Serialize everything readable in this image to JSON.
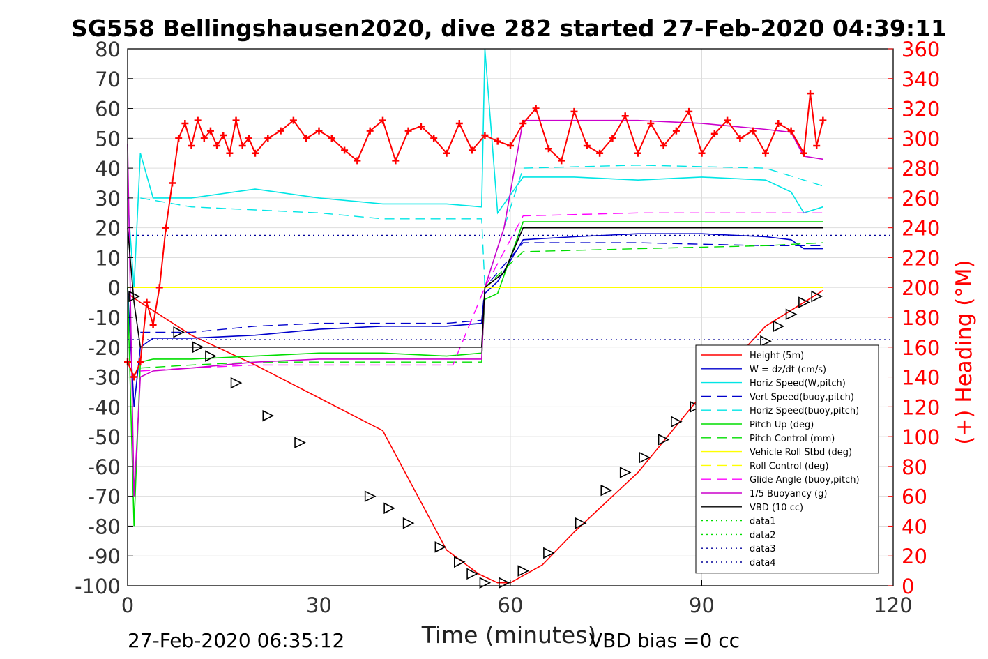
{
  "chart_data": {
    "type": "line",
    "title": "SG558 Bellingshausen2020, dive 282 started 27-Feb-2020 04:39:11",
    "xlabel": "Time (minutes)",
    "ylabel_right": "(+) Heading (°M)",
    "footer_left": "27-Feb-2020 06:35:12",
    "footer_right": "VBD bias =0 cc",
    "xlim": [
      0,
      120
    ],
    "ylim": [
      -100,
      80
    ],
    "y2lim": [
      0,
      360
    ],
    "x_ticks": [
      0,
      30,
      60,
      90,
      120
    ],
    "y_ticks": [
      80,
      70,
      60,
      50,
      40,
      30,
      20,
      10,
      0,
      -10,
      -20,
      -30,
      -40,
      -50,
      -60,
      -70,
      -80,
      -90,
      -100
    ],
    "y2_ticks": [
      360,
      340,
      320,
      300,
      280,
      260,
      240,
      220,
      200,
      180,
      160,
      140,
      120,
      100,
      80,
      60,
      40,
      20,
      0
    ],
    "grid": true,
    "legend_position": "lower-right",
    "series": [
      {
        "name": "Height (5m)",
        "color": "#ff0000",
        "style": "solid",
        "x": [
          0,
          2,
          10,
          20,
          30,
          40,
          50,
          55,
          58,
          60,
          65,
          70,
          80,
          90,
          100,
          109
        ],
        "values": [
          -2,
          -5,
          -16,
          -26,
          -37,
          -48,
          -88,
          -96,
          -99,
          -99,
          -93,
          -82,
          -62,
          -36,
          -13,
          -1
        ]
      },
      {
        "name": "W = dz/dt (cm/s)",
        "color": "#0000cc",
        "style": "solid",
        "x": [
          0,
          1,
          2,
          4,
          10,
          20,
          30,
          40,
          50,
          55.5,
          56,
          58,
          62,
          70,
          80,
          90,
          100,
          104,
          106,
          109
        ],
        "values": [
          0,
          -40,
          -20,
          -17,
          -17,
          -16,
          -14,
          -13,
          -13,
          -12,
          -2,
          2,
          16,
          17,
          18,
          18,
          17,
          16,
          13,
          13
        ]
      },
      {
        "name": "Horiz Speed(W,pitch)",
        "color": "#00e5e5",
        "style": "solid",
        "x": [
          0,
          1,
          2,
          4,
          10,
          20,
          30,
          40,
          50,
          55.5,
          56,
          58,
          62,
          70,
          80,
          90,
          100,
          104,
          106,
          109
        ],
        "values": [
          30,
          0,
          45,
          30,
          30,
          33,
          30,
          28,
          28,
          27,
          80,
          25,
          37,
          37,
          36,
          37,
          36,
          32,
          25,
          27
        ]
      },
      {
        "name": "Vert Speed(buoy,pitch)",
        "color": "#0000cc",
        "style": "dashed",
        "x": [
          2,
          10,
          20,
          30,
          40,
          50,
          55.5,
          56,
          62,
          80,
          100,
          109
        ],
        "values": [
          -15,
          -15,
          -13,
          -12,
          -12,
          -12,
          -11,
          0,
          15,
          15,
          14,
          14
        ]
      },
      {
        "name": "Horiz Speed(buoy,pitch)",
        "color": "#00e5e5",
        "style": "dashed",
        "x": [
          2,
          10,
          20,
          30,
          40,
          50,
          55.5,
          56,
          62,
          80,
          100,
          109
        ],
        "values": [
          30,
          27,
          26,
          25,
          23,
          23,
          23,
          0,
          40,
          41,
          40,
          34
        ]
      },
      {
        "name": "Pitch Up (deg)",
        "color": "#00dd00",
        "style": "solid",
        "x": [
          0,
          1,
          2,
          4,
          10,
          20,
          30,
          40,
          50,
          55.5,
          56,
          58,
          62,
          70,
          80,
          90,
          100,
          109
        ],
        "values": [
          0,
          -80,
          -25,
          -24,
          -24,
          -23,
          -22,
          -22,
          -23,
          -22,
          -4,
          -2,
          22,
          22,
          22,
          22,
          22,
          22
        ]
      },
      {
        "name": "Pitch Control (mm)",
        "color": "#00dd00",
        "style": "dashed",
        "x": [
          2,
          10,
          20,
          30,
          40,
          50,
          55.5,
          56,
          62,
          80,
          100,
          109
        ],
        "values": [
          -27,
          -26,
          -25,
          -25,
          -25,
          -25,
          -25,
          0,
          12,
          13,
          14,
          15
        ]
      },
      {
        "name": "Vehicle Roll Stbd (deg)",
        "color": "#ffff00",
        "style": "solid",
        "x": [
          0,
          5,
          10,
          20,
          30,
          40,
          50,
          60,
          70,
          80,
          90,
          100,
          109
        ],
        "values": [
          0,
          0,
          0,
          0,
          0,
          0,
          0,
          0,
          0,
          0,
          0,
          0,
          0
        ]
      },
      {
        "name": "Roll Control (deg)",
        "color": "#ffff00",
        "style": "dashed",
        "x": [
          0,
          5,
          10,
          20,
          30,
          40,
          50,
          60,
          70,
          80,
          90,
          100,
          109
        ],
        "values": [
          0,
          0,
          0,
          0,
          0,
          0,
          0,
          0,
          0,
          0,
          0,
          0,
          0
        ]
      },
      {
        "name": "Glide Angle (buoy,pitch)",
        "color": "#ff00ff",
        "style": "dashed",
        "x": [
          2,
          10,
          20,
          30,
          40,
          50,
          51,
          56,
          62,
          80,
          100,
          109
        ],
        "values": [
          -28,
          -27,
          -26,
          -26,
          -26,
          -26,
          -26,
          0,
          24,
          25,
          25,
          25
        ]
      },
      {
        "name": "1/5 Buoyancy (g)",
        "color": "#cc00cc",
        "style": "solid",
        "x": [
          0,
          1,
          2,
          4,
          10,
          20,
          30,
          40,
          50,
          55.5,
          56,
          59,
          62,
          70,
          80,
          90,
          100,
          104,
          106,
          109
        ],
        "values": [
          48,
          -70,
          -30,
          -28,
          -27,
          -25,
          -24,
          -24,
          -24,
          -24,
          0,
          20,
          56,
          56,
          56,
          55,
          53,
          52,
          44,
          43
        ]
      },
      {
        "name": "VBD (10 cc)",
        "color": "#000000",
        "style": "solid",
        "x": [
          0,
          1,
          2,
          3,
          55.5,
          56,
          59,
          62,
          80,
          100,
          109
        ],
        "values": [
          20,
          -5,
          -20,
          -20,
          -20,
          0,
          5,
          20,
          20,
          20,
          20
        ]
      },
      {
        "name": "data1",
        "color": "#00dd00",
        "style": "dotted",
        "x": [],
        "values": []
      },
      {
        "name": "data2",
        "color": "#00dd00",
        "style": "dotted",
        "x": [],
        "values": []
      },
      {
        "name": "data3",
        "color": "#000099",
        "style": "dotted",
        "x": [
          0,
          120
        ],
        "values": [
          17.5,
          17.5
        ]
      },
      {
        "name": "data4",
        "color": "#000099",
        "style": "dotted",
        "x": [
          0,
          120
        ],
        "values": [
          -17.5,
          -17.5
        ]
      }
    ],
    "heading_series": {
      "color": "#ff0000",
      "marker": "+",
      "axis": "right",
      "x": [
        0,
        1,
        2,
        3,
        4,
        5,
        6,
        7,
        8,
        9,
        10,
        11,
        12,
        13,
        14,
        15,
        16,
        17,
        18,
        19,
        20,
        22,
        24,
        26,
        28,
        30,
        32,
        34,
        36,
        38,
        40,
        42,
        44,
        46,
        48,
        50,
        52,
        54,
        56,
        58,
        60,
        62,
        64,
        66,
        68,
        70,
        72,
        74,
        76,
        78,
        80,
        82,
        84,
        86,
        88,
        90,
        92,
        94,
        96,
        98,
        100,
        102,
        104,
        106,
        107,
        108,
        109
      ],
      "values": [
        150,
        140,
        150,
        190,
        175,
        200,
        240,
        270,
        300,
        310,
        295,
        312,
        300,
        305,
        295,
        302,
        290,
        312,
        295,
        300,
        290,
        300,
        305,
        312,
        300,
        305,
        300,
        292,
        285,
        305,
        312,
        285,
        305,
        308,
        300,
        290,
        310,
        292,
        302,
        298,
        295,
        310,
        320,
        293,
        285,
        318,
        295,
        290,
        300,
        315,
        290,
        310,
        295,
        305,
        318,
        290,
        303,
        312,
        300,
        305,
        290,
        310,
        305,
        290,
        330,
        295,
        312
      ]
    },
    "height_markers": {
      "color": "#000000",
      "marker": "triangles",
      "x": [
        1,
        8,
        11,
        13,
        17,
        22,
        27,
        38,
        41,
        44,
        49,
        52,
        54,
        56,
        59,
        62,
        66,
        71,
        75,
        78,
        81,
        84,
        86,
        89,
        93,
        97,
        100,
        102,
        104,
        106,
        108
      ],
      "values": [
        -3,
        -15,
        -20,
        -23,
        -32,
        -43,
        -52,
        -70,
        -74,
        -79,
        -87,
        -92,
        -96,
        -99,
        -99,
        -95,
        -89,
        -79,
        -68,
        -62,
        -57,
        -51,
        -45,
        -40,
        -32,
        -24,
        -18,
        -13,
        -9,
        -5,
        -3
      ]
    }
  }
}
